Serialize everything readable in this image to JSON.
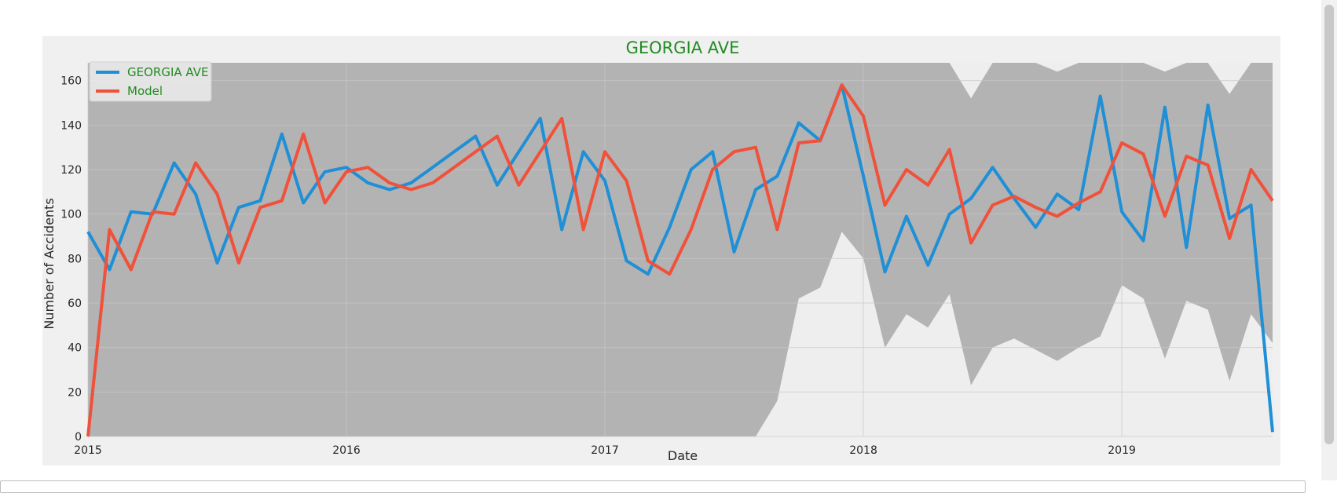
{
  "chart_data": {
    "type": "line",
    "title": "GEORGIA AVE",
    "xlabel": "Date",
    "ylabel": "Number of Accidents",
    "x_tick_labels": [
      "2015",
      "2016",
      "2017",
      "2018",
      "2019"
    ],
    "y_ticks": [
      0,
      20,
      40,
      60,
      80,
      100,
      120,
      140,
      160
    ],
    "xlim": [
      "2015-01",
      "2019-08"
    ],
    "ylim": [
      0,
      168
    ],
    "grid": true,
    "legend": "top-left",
    "colors": {
      "title": "#228b22",
      "legend_text": "#228b22",
      "actual": "#1f8fd6",
      "model": "#f0513a",
      "band": "#b3b3b3",
      "plot_bg": "#eeeeee",
      "grid": "#c8c8c8"
    },
    "x": [
      "2015-01",
      "2015-02",
      "2015-03",
      "2015-04",
      "2015-05",
      "2015-06",
      "2015-07",
      "2015-08",
      "2015-09",
      "2015-10",
      "2015-11",
      "2015-12",
      "2016-01",
      "2016-02",
      "2016-03",
      "2016-04",
      "2016-05",
      "2016-06",
      "2016-07",
      "2016-08",
      "2016-09",
      "2016-10",
      "2016-11",
      "2016-12",
      "2017-01",
      "2017-02",
      "2017-03",
      "2017-04",
      "2017-05",
      "2017-06",
      "2017-07",
      "2017-08",
      "2017-09",
      "2017-10",
      "2017-11",
      "2017-12",
      "2018-01",
      "2018-02",
      "2018-03",
      "2018-04",
      "2018-05",
      "2018-06",
      "2018-07",
      "2018-08",
      "2018-09",
      "2018-10",
      "2018-11",
      "2018-12",
      "2019-01",
      "2019-02",
      "2019-03",
      "2019-04",
      "2019-05",
      "2019-06",
      "2019-07",
      "2019-08"
    ],
    "series": [
      {
        "name": "GEORGIA AVE",
        "values": [
          92,
          75,
          101,
          100,
          123,
          109,
          78,
          103,
          106,
          136,
          105,
          119,
          121,
          114,
          111,
          114,
          121,
          128,
          135,
          113,
          128,
          143,
          93,
          128,
          115,
          79,
          73,
          94,
          120,
          128,
          83,
          111,
          117,
          141,
          133,
          158,
          117,
          74,
          99,
          77,
          100,
          107,
          121,
          107,
          94,
          109,
          102,
          153,
          101,
          88,
          148,
          85,
          149,
          98,
          104,
          2
        ]
      },
      {
        "name": "Model",
        "values": [
          0,
          93,
          75,
          101,
          100,
          123,
          109,
          78,
          103,
          106,
          136,
          105,
          119,
          121,
          114,
          111,
          114,
          121,
          128,
          135,
          113,
          128,
          143,
          93,
          128,
          115,
          79,
          73,
          93,
          120,
          128,
          130,
          93,
          132,
          133,
          158,
          144,
          104,
          120,
          113,
          129,
          87,
          104,
          108,
          103,
          99,
          105,
          110,
          132,
          127,
          99,
          126,
          122,
          89,
          120,
          106
        ]
      }
    ],
    "confidence_band": {
      "lower": [
        0,
        0,
        0,
        0,
        0,
        0,
        0,
        0,
        0,
        0,
        0,
        0,
        0,
        0,
        0,
        0,
        0,
        0,
        0,
        0,
        0,
        0,
        0,
        0,
        0,
        0,
        0,
        0,
        0,
        0,
        0,
        0,
        16,
        62,
        67,
        92,
        80,
        40,
        55,
        49,
        64,
        23,
        40,
        44,
        39,
        34,
        40,
        45,
        68,
        62,
        35,
        61,
        57,
        25,
        55,
        42
      ],
      "upper": [
        168,
        168,
        168,
        168,
        168,
        168,
        168,
        168,
        168,
        168,
        168,
        168,
        168,
        168,
        168,
        168,
        168,
        168,
        168,
        168,
        168,
        168,
        168,
        168,
        168,
        168,
        168,
        168,
        168,
        168,
        168,
        168,
        168,
        168,
        168,
        168,
        168,
        168,
        168,
        168,
        168,
        152,
        168,
        168,
        168,
        164,
        168,
        168,
        168,
        168,
        164,
        168,
        168,
        154,
        168,
        168
      ]
    }
  }
}
